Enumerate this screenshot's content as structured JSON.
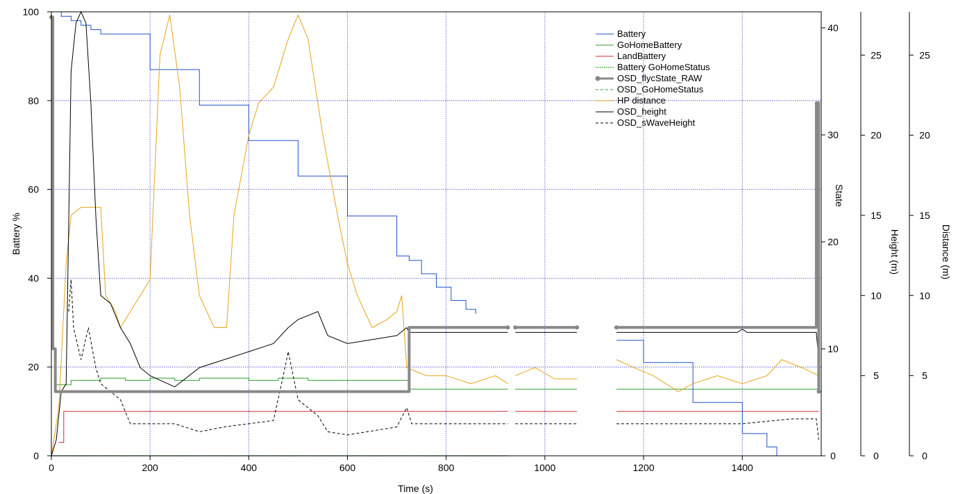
{
  "chart_data": {
    "type": "line",
    "xlabel": "Time (s)",
    "xlim": [
      0,
      1560
    ],
    "x_ticks": [
      0,
      200,
      400,
      600,
      800,
      1000,
      1200,
      1400
    ],
    "axes": {
      "battery": {
        "label": "Battery %",
        "lim": [
          0,
          100
        ],
        "ticks": [
          0,
          20,
          40,
          60,
          80,
          100
        ]
      },
      "state": {
        "label": "State",
        "lim": [
          0,
          41.5
        ],
        "ticks": [
          0,
          10,
          20,
          30,
          40
        ]
      },
      "height": {
        "label": "Height (m)",
        "lim": [
          0,
          27.7
        ],
        "ticks": [
          0,
          5,
          10,
          15,
          20,
          25
        ]
      },
      "distance": {
        "label": "Distance (m)",
        "lim": [
          0,
          27.7
        ],
        "ticks": [
          0,
          5,
          10,
          15,
          20,
          25
        ]
      }
    },
    "grid": true,
    "legend_position": "top-right",
    "series": [
      {
        "name": "Battery",
        "axis": "battery",
        "color": "#1f52cc",
        "style": "solid",
        "step": true,
        "segments": [
          [
            [
              0,
              100
            ],
            [
              20,
              99
            ],
            [
              40,
              98
            ],
            [
              60,
              97
            ],
            [
              80,
              96
            ],
            [
              100,
              95
            ],
            [
              200,
              87
            ],
            [
              300,
              79
            ],
            [
              400,
              71
            ],
            [
              500,
              63
            ],
            [
              600,
              54
            ],
            [
              700,
              45
            ],
            [
              725,
              44
            ],
            [
              750,
              41
            ],
            [
              780,
              38
            ],
            [
              810,
              35
            ],
            [
              840,
              33
            ],
            [
              860,
              32
            ]
          ],
          [
            [
              1145,
              26
            ],
            [
              1200,
              21
            ],
            [
              1300,
              12
            ],
            [
              1400,
              5
            ],
            [
              1450,
              2
            ],
            [
              1470,
              0
            ],
            [
              1555,
              0
            ]
          ]
        ]
      },
      {
        "name": "GoHomeBattery",
        "axis": "battery",
        "color": "#2ca02c",
        "style": "solid",
        "step": true,
        "segments": [
          [
            [
              10,
              16
            ],
            [
              40,
              17
            ],
            [
              100,
              17.5
            ],
            [
              150,
              17
            ],
            [
              200,
              17.5
            ],
            [
              250,
              17
            ],
            [
              300,
              17.5
            ],
            [
              400,
              17
            ],
            [
              460,
              17.5
            ],
            [
              520,
              17
            ],
            [
              600,
              17
            ],
            [
              700,
              17
            ],
            [
              725,
              15
            ],
            [
              925,
              15
            ]
          ],
          [
            [
              940,
              15
            ],
            [
              1065,
              15
            ]
          ],
          [
            [
              1145,
              15
            ],
            [
              1555,
              15
            ]
          ]
        ]
      },
      {
        "name": "LandBattery",
        "axis": "battery",
        "color": "#d62728",
        "style": "solid",
        "step": true,
        "segments": [
          [
            [
              15,
              3
            ],
            [
              25,
              10
            ],
            [
              925,
              10
            ]
          ],
          [
            [
              940,
              10
            ],
            [
              1065,
              10
            ]
          ],
          [
            [
              1145,
              10
            ],
            [
              1555,
              10
            ]
          ]
        ]
      },
      {
        "name": "Battery GoHomeStatus",
        "axis": "battery",
        "color": "#2ca02c",
        "style": "dotted",
        "step": false,
        "segments": [
          [
            [
              0,
              0
            ],
            [
              925,
              0
            ]
          ]
        ]
      },
      {
        "name": "OSD_flycState_RAW",
        "axis": "state",
        "color": "#888888",
        "style": "thick-marker",
        "step": true,
        "segments": [
          [
            [
              0,
              41
            ],
            [
              3,
              41
            ],
            [
              3,
              10
            ],
            [
              8,
              10
            ],
            [
              8,
              6
            ],
            [
              725,
              6
            ],
            [
              725,
              12
            ],
            [
              925,
              12
            ]
          ],
          [
            [
              940,
              12
            ],
            [
              1065,
              12
            ]
          ],
          [
            [
              1145,
              12
            ],
            [
              1550,
              12
            ],
            [
              1550,
              33
            ],
            [
              1555,
              33
            ],
            [
              1555,
              6
            ]
          ]
        ]
      },
      {
        "name": "OSD_GoHomeStatus",
        "axis": "battery",
        "color": "#2ca02c",
        "style": "dashed",
        "step": false,
        "segments": [
          [
            [
              0,
              0
            ],
            [
              925,
              0
            ]
          ]
        ]
      },
      {
        "name": "HP distance",
        "axis": "distance",
        "color": "#e8a317",
        "style": "solid",
        "step": false,
        "segments": [
          [
            [
              0,
              0
            ],
            [
              15,
              3
            ],
            [
              30,
              12
            ],
            [
              40,
              15
            ],
            [
              60,
              15.5
            ],
            [
              100,
              15.5
            ],
            [
              110,
              10
            ],
            [
              130,
              9
            ],
            [
              140,
              8
            ],
            [
              160,
              9
            ],
            [
              200,
              11
            ],
            [
              220,
              25
            ],
            [
              240,
              27.5
            ],
            [
              260,
              23
            ],
            [
              280,
              15
            ],
            [
              300,
              10
            ],
            [
              330,
              8
            ],
            [
              355,
              8
            ],
            [
              370,
              15
            ],
            [
              400,
              20
            ],
            [
              420,
              22
            ],
            [
              450,
              23
            ],
            [
              480,
              26
            ],
            [
              500,
              27.5
            ],
            [
              520,
              26
            ],
            [
              550,
              20
            ],
            [
              580,
              15
            ],
            [
              600,
              12
            ],
            [
              620,
              10
            ],
            [
              650,
              8
            ],
            [
              680,
              8.5
            ],
            [
              700,
              9
            ],
            [
              710,
              10
            ],
            [
              720,
              5.5
            ],
            [
              760,
              5
            ],
            [
              800,
              5
            ],
            [
              850,
              4.5
            ],
            [
              900,
              5
            ],
            [
              925,
              4.5
            ]
          ],
          [
            [
              940,
              5
            ],
            [
              980,
              5.5
            ],
            [
              1020,
              4.8
            ],
            [
              1065,
              4.8
            ]
          ],
          [
            [
              1145,
              6
            ],
            [
              1180,
              5.5
            ],
            [
              1220,
              5
            ],
            [
              1270,
              4
            ],
            [
              1300,
              4.5
            ],
            [
              1350,
              5
            ],
            [
              1400,
              4.5
            ],
            [
              1450,
              5
            ],
            [
              1480,
              6
            ],
            [
              1520,
              5.5
            ],
            [
              1555,
              5
            ]
          ]
        ]
      },
      {
        "name": "OSD_height",
        "axis": "height",
        "color": "#000000",
        "style": "solid",
        "step": false,
        "segments": [
          [
            [
              0,
              0
            ],
            [
              10,
              1
            ],
            [
              20,
              4
            ],
            [
              30,
              4.5
            ],
            [
              40,
              24
            ],
            [
              50,
              27
            ],
            [
              60,
              27.7
            ],
            [
              70,
              27
            ],
            [
              80,
              22
            ],
            [
              90,
              15
            ],
            [
              100,
              10
            ],
            [
              120,
              9.5
            ],
            [
              140,
              8
            ],
            [
              160,
              7
            ],
            [
              180,
              5.5
            ],
            [
              200,
              5
            ],
            [
              250,
              4.3
            ],
            [
              300,
              5.5
            ],
            [
              350,
              6
            ],
            [
              400,
              6.5
            ],
            [
              450,
              7
            ],
            [
              480,
              8
            ],
            [
              500,
              8.5
            ],
            [
              540,
              9
            ],
            [
              560,
              7.5
            ],
            [
              600,
              7
            ],
            [
              700,
              7.5
            ],
            [
              720,
              8
            ],
            [
              725,
              7.7
            ],
            [
              925,
              7.7
            ]
          ],
          [
            [
              940,
              7.7
            ],
            [
              1065,
              7.7
            ]
          ],
          [
            [
              1145,
              7.7
            ],
            [
              1390,
              7.7
            ],
            [
              1400,
              7.9
            ],
            [
              1410,
              7.7
            ],
            [
              1550,
              7.7
            ],
            [
              1555,
              6
            ]
          ]
        ]
      },
      {
        "name": "OSD_sWaveHeight",
        "axis": "height",
        "color": "#000000",
        "style": "dashed",
        "step": false,
        "segments": [
          [
            [
              35,
              9
            ],
            [
              40,
              11
            ],
            [
              45,
              8
            ],
            [
              60,
              6
            ],
            [
              75,
              8
            ],
            [
              90,
              5.5
            ],
            [
              100,
              4.5
            ],
            [
              120,
              4
            ],
            [
              140,
              3.5
            ],
            [
              160,
              2
            ],
            [
              200,
              2
            ],
            [
              250,
              2
            ],
            [
              300,
              1.5
            ],
            [
              350,
              1.8
            ],
            [
              400,
              2
            ],
            [
              450,
              2.2
            ],
            [
              470,
              5
            ],
            [
              480,
              6.5
            ],
            [
              500,
              3.5
            ],
            [
              540,
              2.5
            ],
            [
              560,
              1.5
            ],
            [
              600,
              1.3
            ],
            [
              700,
              1.8
            ],
            [
              720,
              3
            ],
            [
              730,
              2
            ],
            [
              925,
              2
            ]
          ],
          [
            [
              940,
              2
            ],
            [
              1065,
              2
            ]
          ],
          [
            [
              1145,
              2
            ],
            [
              1400,
              2
            ],
            [
              1500,
              2.3
            ],
            [
              1550,
              2.3
            ],
            [
              1555,
              1
            ]
          ]
        ]
      }
    ]
  }
}
